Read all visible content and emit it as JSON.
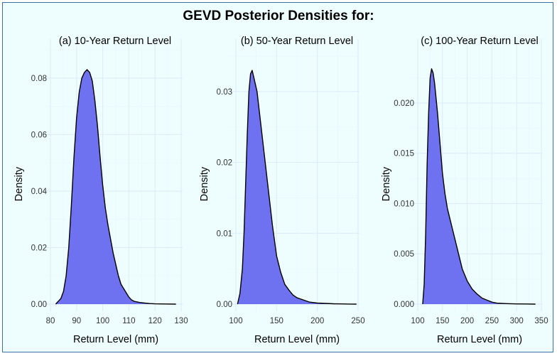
{
  "figure": {
    "title": "GEVD Posterior Densities for:",
    "background_color": "#eefefe",
    "border_color": "#3b6fa8",
    "fill_color": "#6e72f0",
    "line_color": "#000000"
  },
  "chart_data": [
    {
      "type": "area",
      "title": "(a) 10-Year Return Level",
      "xlabel": "Return Level (mm)",
      "ylabel": "Density",
      "xlim": [
        80,
        130
      ],
      "ylim": [
        0,
        0.084
      ],
      "xticks": [
        80,
        90,
        100,
        110,
        120,
        130
      ],
      "yticks": [
        0.0,
        0.02,
        0.04,
        0.06,
        0.08
      ],
      "ytick_labels": [
        "0.00",
        "0.02",
        "0.04",
        "0.06",
        "0.08"
      ],
      "x": [
        82,
        84,
        85,
        86,
        87,
        88,
        89,
        90,
        91,
        92,
        93,
        94,
        95,
        96,
        97,
        98,
        99,
        100,
        101,
        102,
        103,
        104,
        105,
        106,
        107,
        108,
        109,
        110,
        111,
        112,
        114,
        116,
        118,
        120,
        124,
        128
      ],
      "y": [
        0.0,
        0.002,
        0.0045,
        0.01,
        0.02,
        0.035,
        0.052,
        0.066,
        0.075,
        0.08,
        0.082,
        0.083,
        0.082,
        0.079,
        0.072,
        0.063,
        0.052,
        0.042,
        0.034,
        0.028,
        0.023,
        0.018,
        0.014,
        0.01,
        0.007,
        0.0055,
        0.004,
        0.0025,
        0.0015,
        0.001,
        0.0006,
        0.0004,
        0.0002,
        0.0001,
        5e-05,
        0.0
      ]
    },
    {
      "type": "area",
      "title": "(b) 50-Year Return Level",
      "xlabel": "Return Level (mm)",
      "ylabel": "Density",
      "xlim": [
        100,
        250
      ],
      "ylim": [
        0,
        0.0335
      ],
      "xticks": [
        100,
        150,
        200,
        250
      ],
      "yticks": [
        0.0,
        0.01,
        0.02,
        0.03
      ],
      "ytick_labels": [
        "0.00",
        "0.01",
        "0.02",
        "0.03"
      ],
      "x": [
        102,
        105,
        108,
        110,
        112,
        114,
        116,
        118,
        120,
        122,
        124,
        126,
        130,
        135,
        140,
        145,
        150,
        155,
        160,
        165,
        170,
        175,
        180,
        185,
        190,
        200,
        210,
        220,
        230,
        240,
        248
      ],
      "y": [
        0.0,
        0.0015,
        0.005,
        0.01,
        0.017,
        0.024,
        0.03,
        0.0325,
        0.033,
        0.032,
        0.031,
        0.03,
        0.026,
        0.021,
        0.016,
        0.011,
        0.0068,
        0.0045,
        0.0028,
        0.002,
        0.0013,
        0.0009,
        0.0007,
        0.0005,
        0.0003,
        0.00015,
        0.0001,
        5e-05,
        3e-05,
        1e-05,
        0.0
      ]
    },
    {
      "type": "area",
      "title": "(c) 100-Year Return Level",
      "xlabel": "Return Level (mm)",
      "ylabel": "Density",
      "xlim": [
        100,
        350
      ],
      "ylim": [
        0,
        0.0236
      ],
      "xticks": [
        100,
        150,
        200,
        250,
        300,
        350
      ],
      "yticks": [
        0.0,
        0.005,
        0.01,
        0.015,
        0.02
      ],
      "ytick_labels": [
        "0.000",
        "0.005",
        "0.010",
        "0.015",
        "0.020"
      ],
      "x": [
        110,
        113,
        116,
        119,
        122,
        125,
        128,
        131,
        134,
        137,
        140,
        145,
        150,
        155,
        160,
        170,
        180,
        190,
        200,
        210,
        220,
        230,
        240,
        250,
        260,
        280,
        300,
        320,
        338
      ],
      "y": [
        0.0,
        0.002,
        0.007,
        0.014,
        0.019,
        0.0225,
        0.0234,
        0.023,
        0.022,
        0.0205,
        0.019,
        0.016,
        0.013,
        0.011,
        0.0095,
        0.0075,
        0.0055,
        0.0035,
        0.0023,
        0.0015,
        0.001,
        0.0006,
        0.0004,
        0.0002,
        0.0001,
        5e-05,
        2e-05,
        1e-05,
        0.0
      ]
    }
  ]
}
